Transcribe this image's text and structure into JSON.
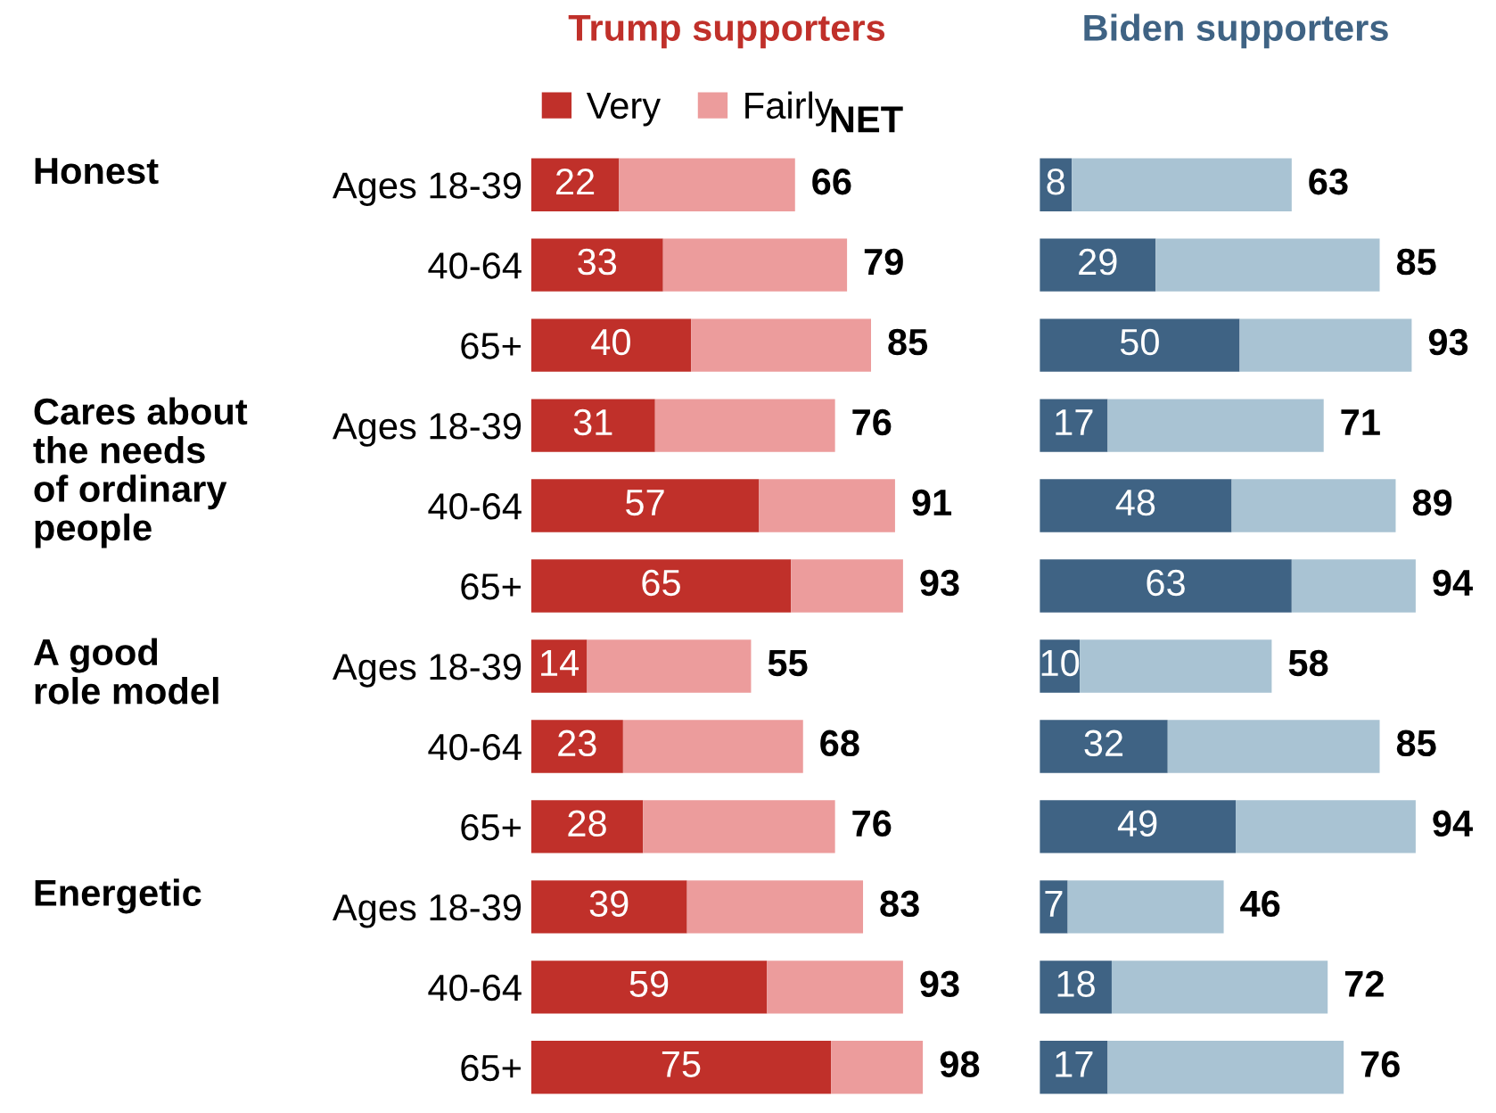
{
  "chart_data": [
    {
      "type": "bar",
      "orientation": "horizontal",
      "stacked": true,
      "title": "Trump supporters",
      "tick_labels": "y",
      "legend": "top",
      "categories": [
        "Ages 18-39",
        "40-64",
        "65+",
        "Ages 18-39",
        "40-64",
        "65+",
        "Ages 18-39",
        "40-64",
        "65+",
        "Ages 18-39",
        "40-64",
        "65+"
      ],
      "series": [
        {
          "name": "Very",
          "color": "#c0302a",
          "values": [
            22,
            33,
            40,
            31,
            57,
            65,
            14,
            23,
            28,
            39,
            59,
            75
          ],
          "value_labels": [
            "22",
            "33",
            "40",
            "31",
            "57",
            "65",
            "14",
            "23",
            "28",
            "39",
            "59",
            "75"
          ]
        },
        {
          "name": "Fairly",
          "color": "#ec9c9c",
          "values": [
            44,
            46,
            45,
            45,
            34,
            28,
            41,
            45,
            48,
            44,
            34,
            23
          ]
        }
      ],
      "totals": [
        "66",
        "79",
        "85",
        "76",
        "91",
        "93",
        "55",
        "68",
        "76",
        "83",
        "93",
        "98"
      ],
      "annotations": [
        "Honest",
        "Cares about\nthe needs\nof ordinary\npeople",
        "A good\nrole model",
        "Energetic",
        "NET"
      ]
    },
    {
      "type": "bar",
      "orientation": "horizontal",
      "stacked": true,
      "title": "Biden supporters",
      "tick_labels": false,
      "categories": [
        null,
        null,
        null,
        null,
        null,
        null,
        null,
        null,
        null,
        null,
        null,
        null
      ],
      "series": [
        {
          "color": "#3f6384",
          "values": [
            8,
            29,
            50,
            17,
            48,
            63,
            10,
            32,
            49,
            7,
            18,
            17
          ],
          "value_labels": [
            "8",
            "29",
            "50",
            "17",
            "48",
            "63",
            "10",
            "32",
            "49",
            "7",
            "18",
            "17"
          ]
        },
        {
          "color": "#a9c3d3",
          "values": [
            55,
            56,
            43,
            54,
            41,
            31,
            48,
            53,
            45,
            39,
            54,
            59
          ]
        }
      ],
      "totals": [
        "63",
        "85",
        "93",
        "71",
        "89",
        "94",
        "58",
        "85",
        "94",
        "46",
        "72",
        "76"
      ]
    }
  ]
}
